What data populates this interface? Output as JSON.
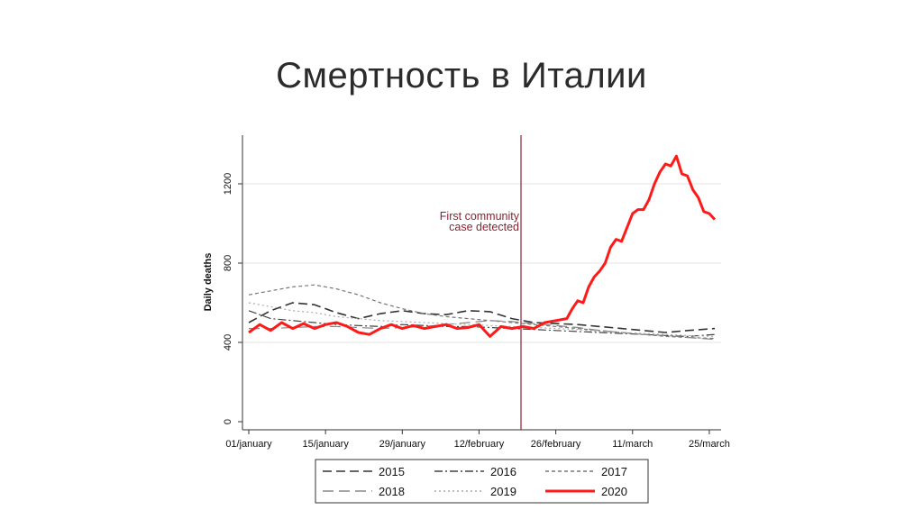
{
  "slide": {
    "title": "Смертность в Италии"
  },
  "colors": {
    "highlight": "#ff1a1a",
    "gray_dark": "#333333",
    "gray_mid": "#777777",
    "gray_light": "#aaaaaa",
    "event_line": "#8b2332",
    "gridline": "#e6e6e6"
  },
  "chart_data": {
    "type": "line",
    "title": "",
    "xlabel": "",
    "ylabel": "Daily deaths",
    "ylim": [
      0,
      1400
    ],
    "yticks": [
      0,
      400,
      800,
      1200
    ],
    "xlim": [
      1,
      86
    ],
    "x_unit": "day of year (1 = 01/january)",
    "xticks": [
      {
        "day": 1,
        "label": "01/january"
      },
      {
        "day": 15,
        "label": "15/january"
      },
      {
        "day": 29,
        "label": "29/january"
      },
      {
        "day": 43,
        "label": "12/february"
      },
      {
        "day": 57,
        "label": "26/february"
      },
      {
        "day": 71,
        "label": "11/march"
      },
      {
        "day": 85,
        "label": "25/march"
      }
    ],
    "grid": "horizontal",
    "legend_position": "bottom",
    "annotation": {
      "day": 51,
      "lines": [
        "First community",
        "case detected"
      ]
    },
    "series": [
      {
        "name": "2015",
        "style": "long-dash",
        "color": "#333333",
        "width": 1.6,
        "points": [
          [
            1,
            500
          ],
          [
            5,
            560
          ],
          [
            9,
            600
          ],
          [
            13,
            590
          ],
          [
            17,
            550
          ],
          [
            21,
            520
          ],
          [
            25,
            545
          ],
          [
            29,
            560
          ],
          [
            33,
            545
          ],
          [
            37,
            540
          ],
          [
            41,
            560
          ],
          [
            45,
            555
          ],
          [
            49,
            520
          ],
          [
            53,
            500
          ],
          [
            57,
            495
          ],
          [
            61,
            490
          ],
          [
            65,
            480
          ],
          [
            69,
            470
          ],
          [
            73,
            460
          ],
          [
            77,
            450
          ],
          [
            81,
            460
          ],
          [
            86,
            470
          ]
        ]
      },
      {
        "name": "2016",
        "style": "dash-dot",
        "color": "#444444",
        "width": 1.2,
        "points": [
          [
            1,
            560
          ],
          [
            5,
            520
          ],
          [
            9,
            510
          ],
          [
            13,
            500
          ],
          [
            17,
            490
          ],
          [
            21,
            485
          ],
          [
            25,
            480
          ],
          [
            29,
            490
          ],
          [
            33,
            485
          ],
          [
            37,
            480
          ],
          [
            41,
            480
          ],
          [
            45,
            475
          ],
          [
            49,
            470
          ],
          [
            53,
            465
          ],
          [
            57,
            460
          ],
          [
            61,
            455
          ],
          [
            65,
            450
          ],
          [
            69,
            445
          ],
          [
            73,
            440
          ],
          [
            77,
            435
          ],
          [
            81,
            430
          ],
          [
            86,
            440
          ]
        ]
      },
      {
        "name": "2017",
        "style": "short-dash",
        "color": "#777777",
        "width": 1.2,
        "points": [
          [
            1,
            640
          ],
          [
            5,
            660
          ],
          [
            9,
            680
          ],
          [
            13,
            690
          ],
          [
            17,
            670
          ],
          [
            21,
            640
          ],
          [
            25,
            600
          ],
          [
            29,
            570
          ],
          [
            33,
            545
          ],
          [
            37,
            530
          ],
          [
            41,
            520
          ],
          [
            45,
            510
          ],
          [
            49,
            500
          ],
          [
            53,
            490
          ],
          [
            57,
            480
          ],
          [
            61,
            470
          ],
          [
            65,
            460
          ],
          [
            69,
            450
          ],
          [
            73,
            440
          ],
          [
            77,
            430
          ],
          [
            81,
            425
          ],
          [
            86,
            420
          ]
        ]
      },
      {
        "name": "2018",
        "style": "long-dash-light",
        "color": "#888888",
        "width": 1.2,
        "points": [
          [
            1,
            470
          ],
          [
            5,
            470
          ],
          [
            9,
            475
          ],
          [
            13,
            480
          ],
          [
            17,
            480
          ],
          [
            21,
            475
          ],
          [
            25,
            470
          ],
          [
            29,
            475
          ],
          [
            33,
            480
          ],
          [
            37,
            490
          ],
          [
            41,
            500
          ],
          [
            45,
            510
          ],
          [
            49,
            505
          ],
          [
            53,
            495
          ],
          [
            57,
            485
          ],
          [
            61,
            475
          ],
          [
            65,
            460
          ],
          [
            69,
            450
          ],
          [
            73,
            440
          ],
          [
            77,
            435
          ],
          [
            81,
            425
          ],
          [
            86,
            415
          ]
        ]
      },
      {
        "name": "2019",
        "style": "dotted",
        "color": "#aaaaaa",
        "width": 1.2,
        "points": [
          [
            1,
            600
          ],
          [
            5,
            580
          ],
          [
            9,
            560
          ],
          [
            13,
            550
          ],
          [
            17,
            530
          ],
          [
            21,
            520
          ],
          [
            25,
            510
          ],
          [
            29,
            505
          ],
          [
            33,
            500
          ],
          [
            37,
            495
          ],
          [
            41,
            490
          ],
          [
            45,
            485
          ],
          [
            49,
            480
          ],
          [
            53,
            475
          ],
          [
            57,
            470
          ],
          [
            61,
            465
          ],
          [
            65,
            455
          ],
          [
            69,
            450
          ],
          [
            73,
            445
          ],
          [
            77,
            440
          ],
          [
            81,
            435
          ],
          [
            86,
            430
          ]
        ]
      },
      {
        "name": "2020",
        "style": "solid",
        "color": "#ff1a1a",
        "width": 3,
        "points": [
          [
            1,
            450
          ],
          [
            3,
            490
          ],
          [
            5,
            460
          ],
          [
            7,
            500
          ],
          [
            9,
            470
          ],
          [
            11,
            495
          ],
          [
            13,
            470
          ],
          [
            15,
            490
          ],
          [
            17,
            500
          ],
          [
            19,
            480
          ],
          [
            21,
            450
          ],
          [
            23,
            440
          ],
          [
            25,
            470
          ],
          [
            27,
            490
          ],
          [
            29,
            470
          ],
          [
            31,
            485
          ],
          [
            33,
            470
          ],
          [
            35,
            480
          ],
          [
            37,
            490
          ],
          [
            39,
            470
          ],
          [
            41,
            475
          ],
          [
            43,
            490
          ],
          [
            45,
            430
          ],
          [
            47,
            480
          ],
          [
            49,
            470
          ],
          [
            51,
            480
          ],
          [
            53,
            470
          ],
          [
            55,
            500
          ],
          [
            57,
            510
          ],
          [
            59,
            520
          ],
          [
            60,
            570
          ],
          [
            61,
            610
          ],
          [
            62,
            600
          ],
          [
            63,
            680
          ],
          [
            64,
            730
          ],
          [
            65,
            760
          ],
          [
            66,
            800
          ],
          [
            67,
            880
          ],
          [
            68,
            920
          ],
          [
            69,
            910
          ],
          [
            70,
            980
          ],
          [
            71,
            1050
          ],
          [
            72,
            1070
          ],
          [
            73,
            1070
          ],
          [
            74,
            1120
          ],
          [
            75,
            1200
          ],
          [
            76,
            1260
          ],
          [
            77,
            1300
          ],
          [
            78,
            1290
          ],
          [
            79,
            1340
          ],
          [
            80,
            1250
          ],
          [
            81,
            1240
          ],
          [
            82,
            1170
          ],
          [
            83,
            1130
          ],
          [
            84,
            1060
          ],
          [
            85,
            1050
          ],
          [
            86,
            1020
          ]
        ]
      }
    ]
  }
}
